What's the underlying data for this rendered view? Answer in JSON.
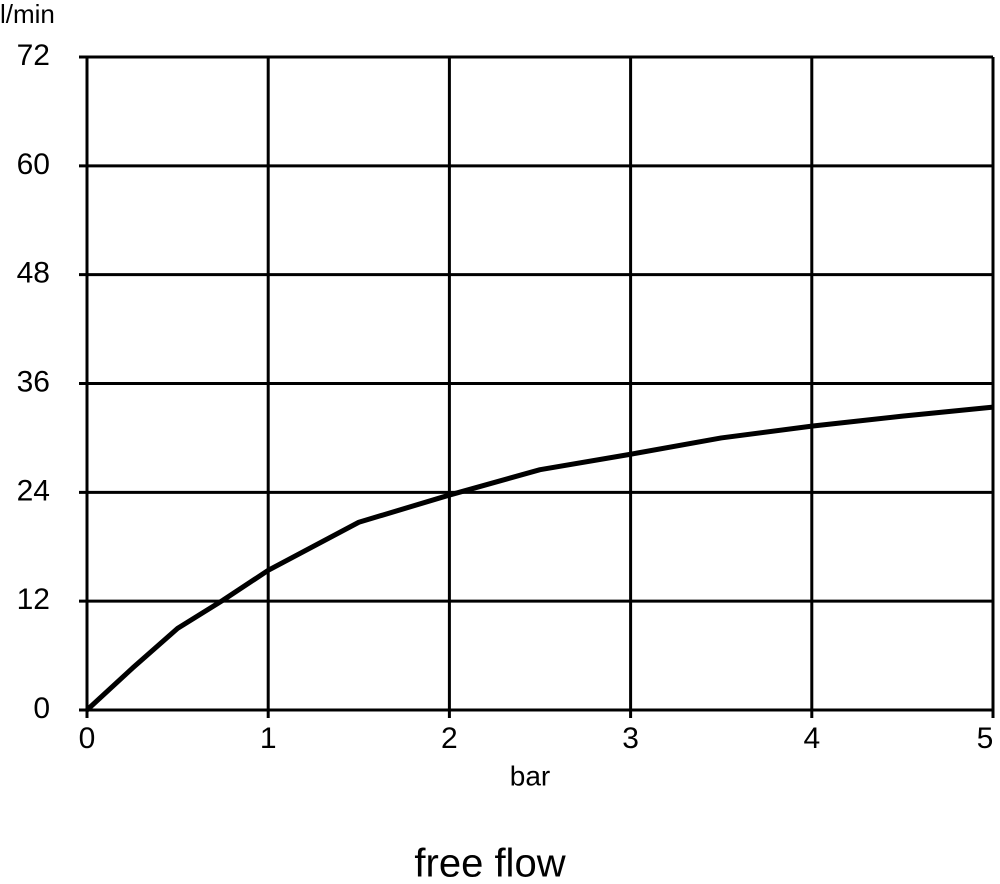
{
  "chart_data": {
    "type": "line",
    "title": "free flow",
    "x_label": "bar",
    "y_label": "l/min",
    "x": [
      0,
      0.25,
      0.5,
      0.75,
      1,
      1.5,
      2,
      2.5,
      3,
      3.5,
      4,
      4.5,
      5
    ],
    "values": [
      0,
      4.6,
      9.0,
      12.1,
      15.4,
      20.7,
      23.7,
      26.5,
      28.2,
      30.0,
      31.3,
      32.4,
      33.4
    ],
    "color": "#000000",
    "xlim": [
      0,
      5
    ],
    "xticks": [
      0,
      1,
      2,
      3,
      4,
      5
    ],
    "ylim": [
      0,
      72
    ],
    "yticks": [
      0,
      12,
      24,
      36,
      48,
      60,
      72
    ],
    "grid": true
  }
}
